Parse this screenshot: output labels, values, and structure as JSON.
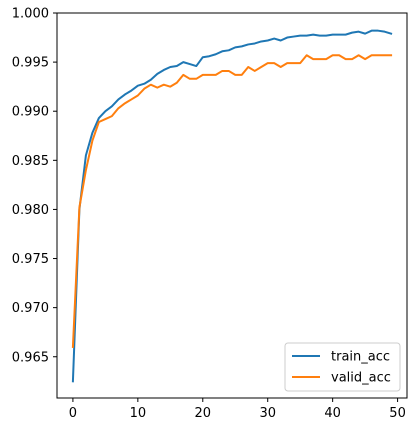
{
  "chart_data": {
    "type": "line",
    "title": "",
    "xlabel": "",
    "ylabel": "",
    "xlim": [
      -2.45,
      51.45
    ],
    "ylim": [
      0.9608,
      1.0
    ],
    "xticks": [
      0,
      10,
      20,
      30,
      40,
      50
    ],
    "xtick_labels": [
      "0",
      "10",
      "20",
      "30",
      "40",
      "50"
    ],
    "yticks": [
      0.965,
      0.97,
      0.975,
      0.98,
      0.985,
      0.99,
      0.995,
      1.0
    ],
    "ytick_labels": [
      "0.965",
      "0.970",
      "0.975",
      "0.980",
      "0.985",
      "0.990",
      "0.995",
      "1.000"
    ],
    "grid": false,
    "legend_position": "lower-right",
    "x": [
      0,
      1,
      2,
      3,
      4,
      5,
      6,
      7,
      8,
      9,
      10,
      11,
      12,
      13,
      14,
      15,
      16,
      17,
      18,
      19,
      20,
      21,
      22,
      23,
      24,
      25,
      26,
      27,
      28,
      29,
      30,
      31,
      32,
      33,
      34,
      35,
      36,
      37,
      38,
      39,
      40,
      41,
      42,
      43,
      44,
      45,
      46,
      47,
      48,
      49
    ],
    "series": [
      {
        "name": "train_acc",
        "color": "#1f77b4",
        "values": [
          0.9625,
          0.98,
          0.9855,
          0.9878,
          0.9893,
          0.99,
          0.9905,
          0.9912,
          0.9917,
          0.9921,
          0.9926,
          0.9928,
          0.9932,
          0.9938,
          0.9942,
          0.9945,
          0.9946,
          0.995,
          0.9948,
          0.9946,
          0.9955,
          0.9956,
          0.9958,
          0.9961,
          0.9962,
          0.9965,
          0.9966,
          0.9968,
          0.9969,
          0.9971,
          0.9972,
          0.9974,
          0.9972,
          0.9975,
          0.9976,
          0.9977,
          0.9977,
          0.9978,
          0.9977,
          0.9977,
          0.9978,
          0.9978,
          0.9978,
          0.998,
          0.9981,
          0.9979,
          0.9982,
          0.9982,
          0.9981,
          0.9979
        ]
      },
      {
        "name": "valid_acc",
        "color": "#ff7f0e",
        "values": [
          0.966,
          0.9802,
          0.984,
          0.987,
          0.9889,
          0.9892,
          0.9895,
          0.9903,
          0.9908,
          0.9912,
          0.9916,
          0.9923,
          0.9927,
          0.9924,
          0.9927,
          0.9925,
          0.9929,
          0.9937,
          0.9933,
          0.9933,
          0.9937,
          0.9937,
          0.9937,
          0.9941,
          0.9941,
          0.9937,
          0.9937,
          0.9945,
          0.9941,
          0.9945,
          0.9949,
          0.9949,
          0.9945,
          0.9949,
          0.9949,
          0.9949,
          0.9957,
          0.9953,
          0.9953,
          0.9953,
          0.9957,
          0.9957,
          0.9953,
          0.9953,
          0.9957,
          0.9953,
          0.9957,
          0.9957,
          0.9957,
          0.9957
        ]
      }
    ]
  }
}
